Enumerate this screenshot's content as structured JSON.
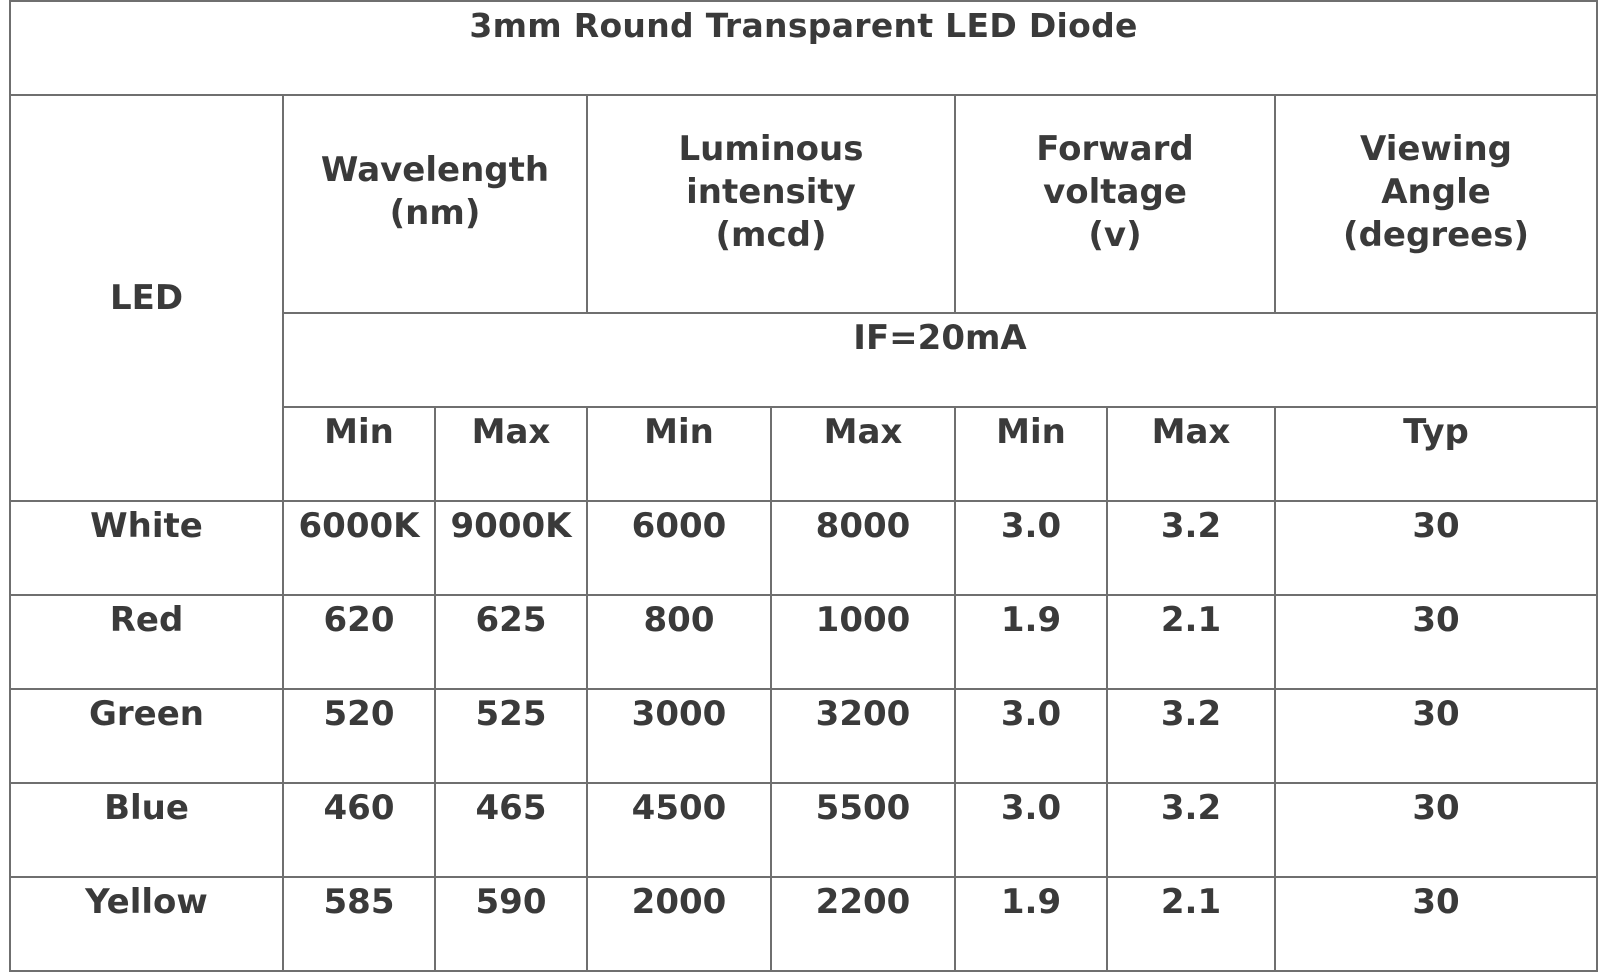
{
  "title": "3mm Round Transparent LED Diode",
  "headers": {
    "led": "LED",
    "wavelength": "Wavelength\n(nm)",
    "luminous": "Luminous\nintensity\n(mcd)",
    "forward": "Forward\nvoltage\n(v)",
    "viewing": "Viewing\nAngle\n(degrees)",
    "condition": "IF=20mA"
  },
  "subheaders": [
    "Min",
    "Max",
    "Min",
    "Max",
    "Min",
    "Max",
    "Typ"
  ],
  "rows": [
    {
      "led": "White",
      "wl_min": "6000K",
      "wl_max": "9000K",
      "li_min": "6000",
      "li_max": "8000",
      "vf_min": "3.0",
      "vf_max": "3.2",
      "angle": "30"
    },
    {
      "led": "Red",
      "wl_min": "620",
      "wl_max": "625",
      "li_min": "800",
      "li_max": "1000",
      "vf_min": "1.9",
      "vf_max": "2.1",
      "angle": "30"
    },
    {
      "led": "Green",
      "wl_min": "520",
      "wl_max": "525",
      "li_min": "3000",
      "li_max": "3200",
      "vf_min": "3.0",
      "vf_max": "3.2",
      "angle": "30"
    },
    {
      "led": "Blue",
      "wl_min": "460",
      "wl_max": "465",
      "li_min": "4500",
      "li_max": "5500",
      "vf_min": "3.0",
      "vf_max": "3.2",
      "angle": "30"
    },
    {
      "led": "Yellow",
      "wl_min": "585",
      "wl_max": "590",
      "li_min": "2000",
      "li_max": "2200",
      "vf_min": "1.9",
      "vf_max": "2.1",
      "angle": "30"
    }
  ]
}
